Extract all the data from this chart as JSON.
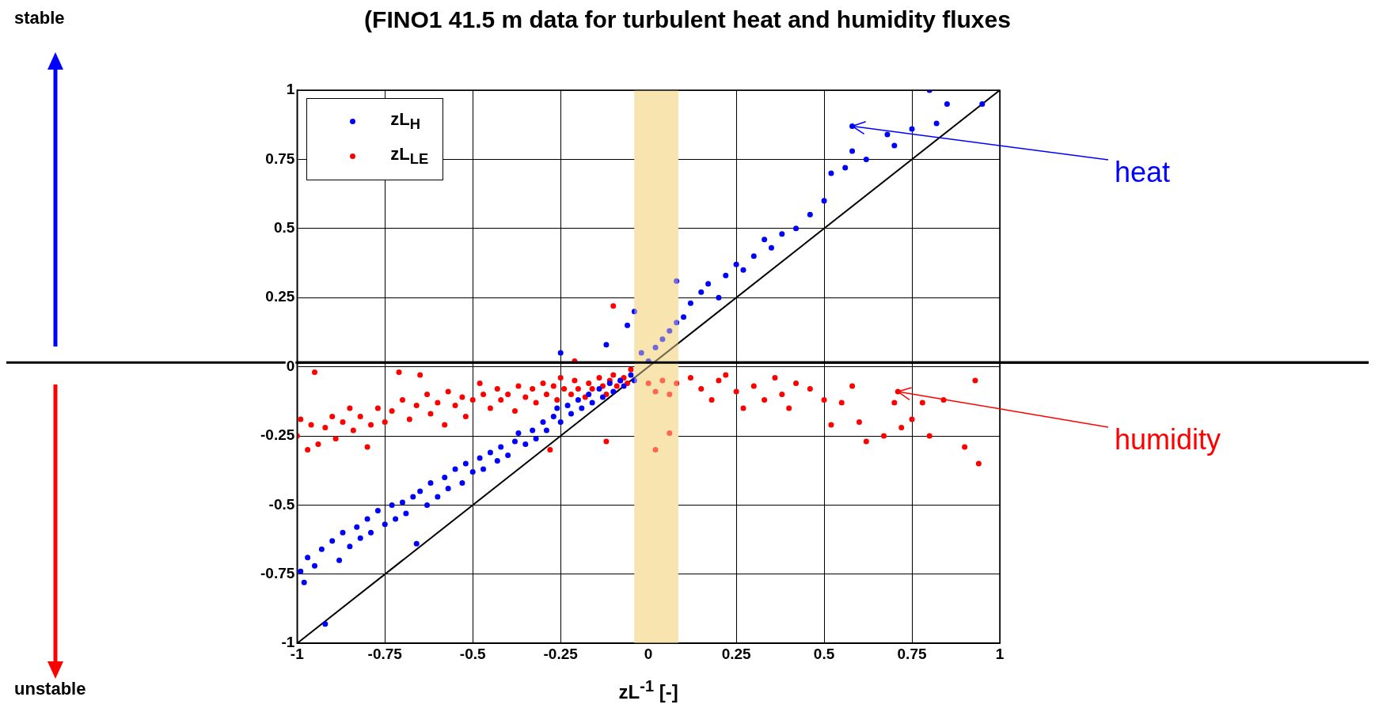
{
  "chart_data": {
    "type": "scatter",
    "title": "(FINO1 41.5 m data for turbulent heat and humidity fluxes",
    "xlabel": "zL$^{-1}$ [-]",
    "xlim": [
      -1,
      1
    ],
    "ylim": [
      -1,
      1
    ],
    "xticks": [
      -1,
      -0.75,
      -0.5,
      -0.25,
      0,
      0.25,
      0.5,
      0.75,
      1
    ],
    "yticks": [
      -1,
      -0.75,
      -0.5,
      -0.25,
      0,
      0.25,
      0.5,
      0.75,
      1
    ],
    "grid": true,
    "legend": "top left",
    "annotations": [
      "stable",
      "unstable",
      {
        "text": "heat",
        "x": 0.58,
        "y": 0.87
      },
      {
        "text": "humidity",
        "x": 0.71,
        "y": -0.09
      }
    ],
    "ref_lines": [
      {
        "axis": "y",
        "value": 0.015,
        "color": "#000000"
      }
    ],
    "bands": [
      {
        "axis": "x",
        "from": -0.04,
        "to": 0.085,
        "color": "#f8e4b0"
      }
    ],
    "series": [
      {
        "name": "zL$_{H}$",
        "color": "#0000ff",
        "marker": "circle",
        "x": [
          -0.99,
          -0.98,
          -0.97,
          -0.95,
          -0.93,
          -0.92,
          -0.9,
          -0.88,
          -0.87,
          -0.85,
          -0.83,
          -0.82,
          -0.8,
          -0.79,
          -0.77,
          -0.75,
          -0.73,
          -0.72,
          -0.7,
          -0.69,
          -0.67,
          -0.66,
          -0.65,
          -0.63,
          -0.62,
          -0.6,
          -0.58,
          -0.57,
          -0.55,
          -0.53,
          -0.52,
          -0.5,
          -0.48,
          -0.47,
          -0.45,
          -0.43,
          -0.42,
          -0.4,
          -0.38,
          -0.37,
          -0.35,
          -0.33,
          -0.32,
          -0.3,
          -0.29,
          -0.27,
          -0.26,
          -0.25,
          -0.23,
          -0.22,
          -0.2,
          -0.19,
          -0.17,
          -0.16,
          -0.14,
          -0.13,
          -0.11,
          -0.1,
          -0.08,
          -0.07,
          -0.05,
          -0.04,
          -0.25,
          -0.12,
          -0.06,
          -0.02,
          0,
          0.02,
          0.04,
          0.06,
          0.08,
          0.1,
          0.12,
          0.15,
          0.17,
          0.2,
          0.22,
          0.25,
          0.27,
          0.3,
          0.33,
          0.35,
          0.38,
          0.42,
          0.46,
          0.5,
          0.52,
          0.56,
          0.58,
          0.62,
          0.68,
          0.7,
          0.75,
          0.8,
          0.82,
          0.85,
          0.95,
          -0.04,
          0.08,
          0.58
        ],
        "values": [
          -0.74,
          -0.78,
          -0.69,
          -0.72,
          -0.66,
          -0.93,
          -0.63,
          -0.7,
          -0.6,
          -0.65,
          -0.58,
          -0.62,
          -0.55,
          -0.6,
          -0.52,
          -0.57,
          -0.5,
          -0.55,
          -0.49,
          -0.53,
          -0.47,
          -0.64,
          -0.45,
          -0.5,
          -0.42,
          -0.47,
          -0.4,
          -0.44,
          -0.37,
          -0.42,
          -0.35,
          -0.38,
          -0.33,
          -0.37,
          -0.31,
          -0.34,
          -0.29,
          -0.32,
          -0.27,
          -0.24,
          -0.28,
          -0.23,
          -0.26,
          -0.2,
          -0.23,
          -0.18,
          -0.15,
          -0.2,
          -0.14,
          -0.17,
          -0.12,
          -0.15,
          -0.1,
          -0.13,
          -0.08,
          -0.11,
          -0.06,
          -0.09,
          -0.05,
          -0.07,
          -0.03,
          -0.05,
          0.05,
          0.08,
          0.15,
          0.05,
          0.02,
          0.07,
          0.1,
          0.13,
          0.16,
          0.18,
          0.23,
          0.27,
          0.3,
          0.25,
          0.33,
          0.37,
          0.35,
          0.4,
          0.46,
          0.43,
          0.48,
          0.5,
          0.55,
          0.6,
          0.7,
          0.72,
          0.78,
          0.75,
          0.84,
          0.8,
          0.86,
          1.0,
          0.88,
          0.95,
          0.95,
          0.2,
          0.31,
          0.87
        ]
      },
      {
        "name": "zL$_{LE}$",
        "color": "#ff0000",
        "marker": "circle",
        "x": [
          -1,
          -0.99,
          -0.97,
          -0.96,
          -0.95,
          -0.94,
          -0.92,
          -0.9,
          -0.89,
          -0.87,
          -0.85,
          -0.84,
          -0.82,
          -0.8,
          -0.79,
          -0.77,
          -0.75,
          -0.73,
          -0.71,
          -0.7,
          -0.68,
          -0.66,
          -0.65,
          -0.63,
          -0.62,
          -0.6,
          -0.58,
          -0.57,
          -0.55,
          -0.53,
          -0.52,
          -0.5,
          -0.48,
          -0.47,
          -0.45,
          -0.43,
          -0.42,
          -0.4,
          -0.38,
          -0.37,
          -0.35,
          -0.33,
          -0.32,
          -0.3,
          -0.29,
          -0.27,
          -0.26,
          -0.25,
          -0.24,
          -0.22,
          -0.21,
          -0.2,
          -0.18,
          -0.17,
          -0.16,
          -0.14,
          -0.13,
          -0.12,
          -0.11,
          -0.1,
          -0.09,
          -0.08,
          -0.07,
          -0.06,
          -0.05,
          -0.1,
          -0.21,
          -0.28,
          -0.12,
          0,
          0.02,
          0.04,
          0.06,
          0.08,
          0.02,
          0.06,
          0.12,
          0.15,
          0.18,
          0.2,
          0.22,
          0.25,
          0.27,
          0.3,
          0.33,
          0.36,
          0.38,
          0.4,
          0.42,
          0.46,
          0.5,
          0.52,
          0.55,
          0.58,
          0.6,
          0.62,
          0.67,
          0.7,
          0.72,
          0.75,
          0.78,
          0.8,
          0.84,
          0.9,
          0.93,
          0.94,
          0.71
        ],
        "values": [
          -0.25,
          -0.19,
          -0.3,
          -0.21,
          -0.02,
          -0.28,
          -0.22,
          -0.18,
          -0.26,
          -0.2,
          -0.15,
          -0.23,
          -0.18,
          -0.29,
          -0.21,
          -0.15,
          -0.2,
          -0.16,
          -0.02,
          -0.12,
          -0.19,
          -0.14,
          -0.03,
          -0.1,
          -0.17,
          -0.13,
          -0.21,
          -0.09,
          -0.14,
          -0.11,
          -0.18,
          -0.12,
          -0.06,
          -0.1,
          -0.15,
          -0.08,
          -0.12,
          -0.1,
          -0.16,
          -0.07,
          -0.11,
          -0.08,
          -0.13,
          -0.06,
          -0.1,
          -0.07,
          -0.12,
          -0.04,
          -0.08,
          -0.1,
          -0.05,
          -0.08,
          -0.11,
          -0.06,
          -0.08,
          -0.04,
          -0.07,
          -0.1,
          -0.05,
          -0.03,
          -0.07,
          -0.05,
          -0.04,
          -0.06,
          -0.01,
          0.22,
          0.02,
          -0.3,
          -0.27,
          -0.06,
          -0.09,
          -0.05,
          -0.1,
          -0.06,
          -0.3,
          -0.24,
          -0.04,
          -0.08,
          -0.12,
          -0.05,
          -0.03,
          -0.09,
          -0.15,
          -0.07,
          -0.12,
          -0.04,
          -0.1,
          -0.15,
          -0.06,
          -0.08,
          -0.12,
          -0.21,
          -0.13,
          -0.07,
          -0.2,
          -0.27,
          -0.25,
          -0.13,
          -0.22,
          -0.19,
          -0.13,
          -0.25,
          -0.12,
          -0.29,
          -0.05,
          -0.35,
          -0.09
        ]
      },
      {
        "type": "line",
        "color": "#000000",
        "marker": "none",
        "x": [
          -1,
          1
        ],
        "values": [
          -1,
          1
        ]
      }
    ]
  }
}
